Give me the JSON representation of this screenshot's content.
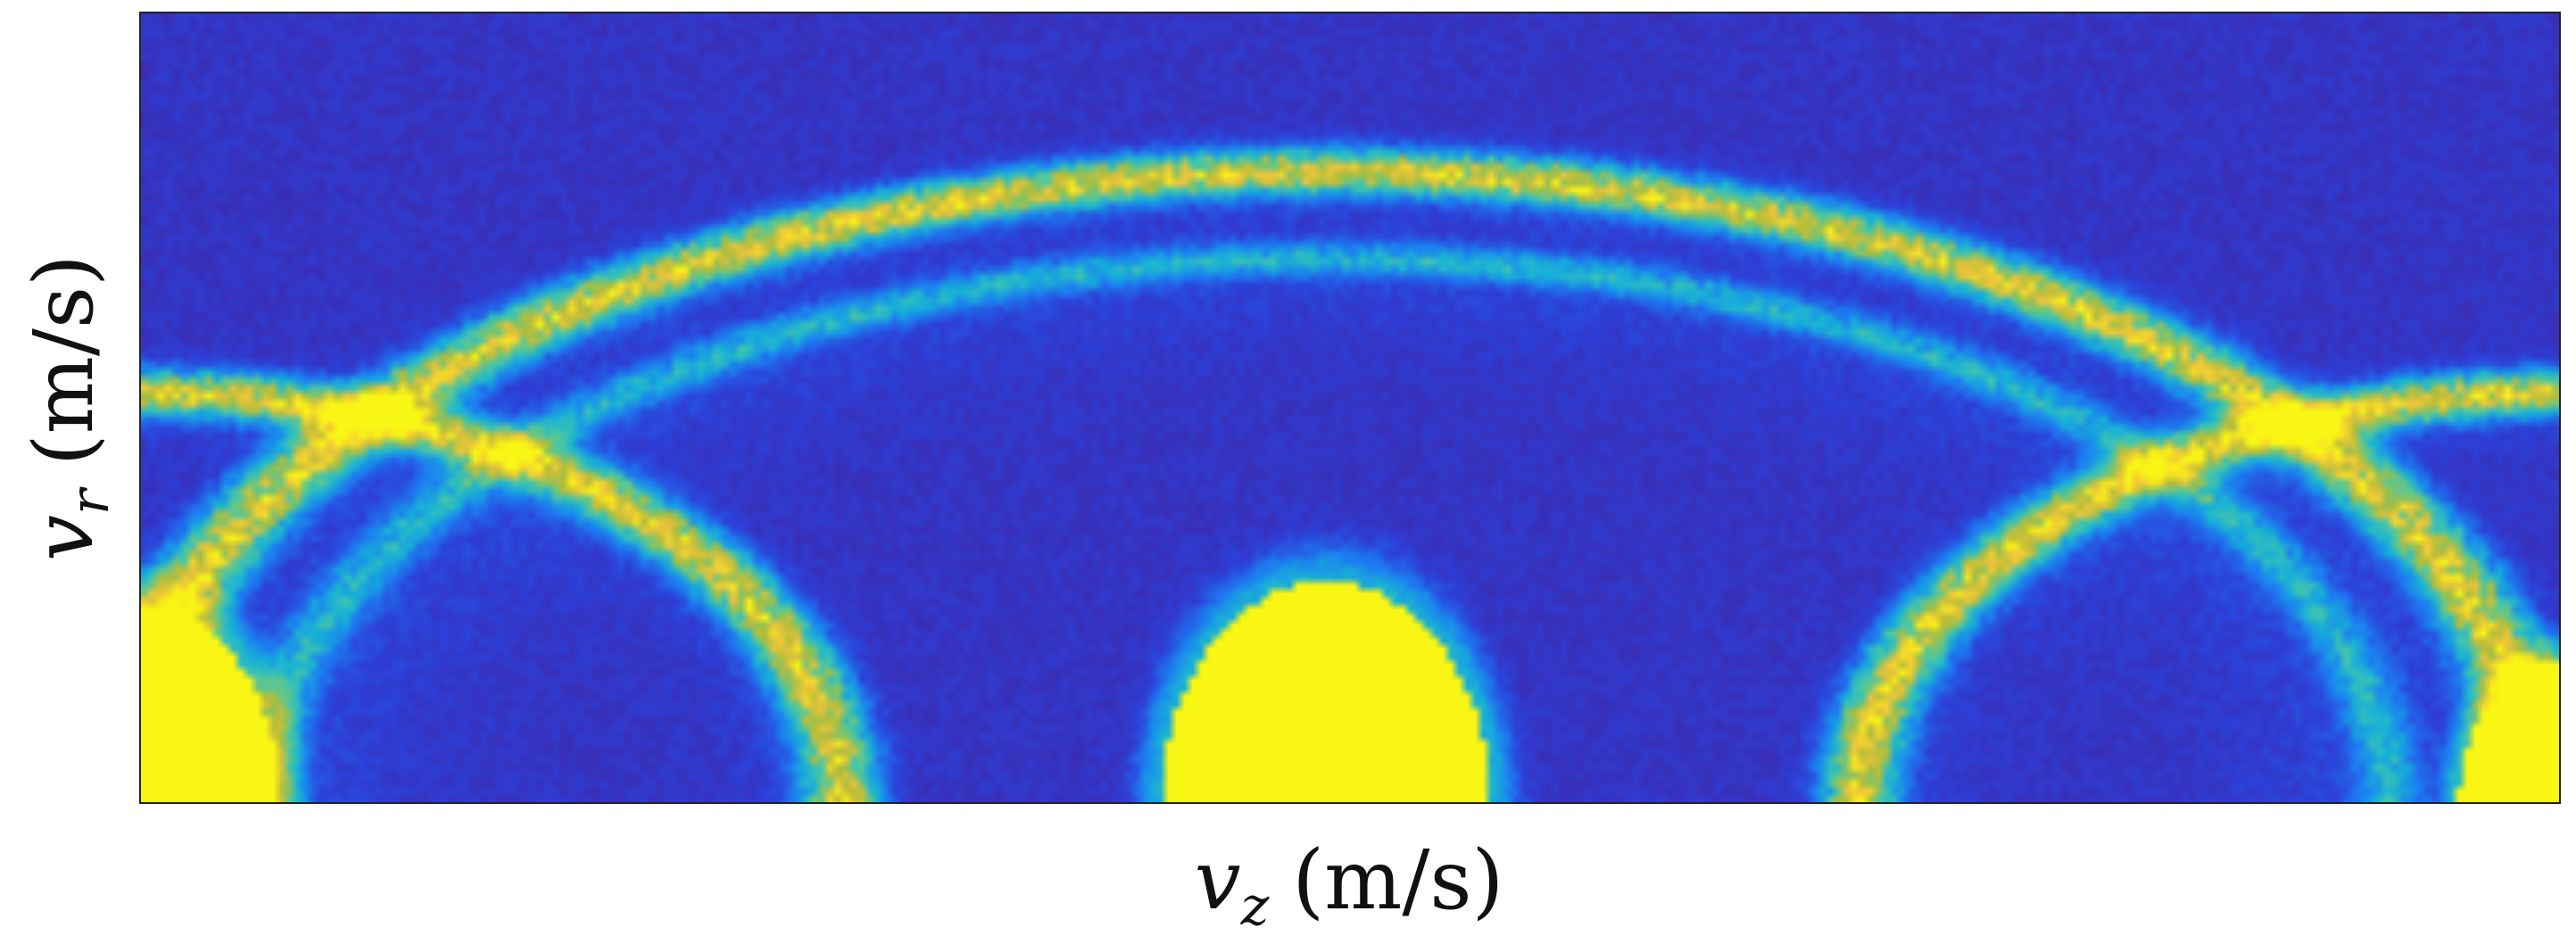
{
  "chart_data": {
    "type": "heatmap",
    "title": "",
    "xlabel": {
      "symbol": "v",
      "subscript": "z",
      "unit": "(m/s)"
    },
    "ylabel": {
      "symbol": "v",
      "subscript": "r",
      "unit": "(m/s)"
    },
    "xlim": [
      0,
      1
    ],
    "ylim": [
      0,
      1
    ],
    "xticks": [],
    "yticks": [],
    "grid": false,
    "legend": "none",
    "colormap": [
      "#3e26a8",
      "#2d40d8",
      "#1c7ef2",
      "#18b3d6",
      "#4cc8a2",
      "#b0bd3a",
      "#f0c53a",
      "#f9f514"
    ],
    "background_level": 0.08,
    "features": [
      {
        "kind": "ring",
        "center": [
          0.0,
          0.0
        ],
        "radius": [
          0.29,
          0.52
        ],
        "thickness": 0.04,
        "intensity": 0.72
      },
      {
        "kind": "ring",
        "center": [
          1.0,
          0.0
        ],
        "radius": [
          0.29,
          0.52
        ],
        "thickness": 0.04,
        "intensity": 0.72
      },
      {
        "kind": "ring",
        "center": [
          0.49,
          0.0
        ],
        "radius": [
          0.5,
          0.8
        ],
        "thickness": 0.04,
        "intensity": 0.72
      },
      {
        "kind": "ring",
        "center": [
          0.49,
          0.0
        ],
        "radius": [
          0.44,
          0.69
        ],
        "thickness": 0.03,
        "intensity": 0.32
      },
      {
        "kind": "blob",
        "center": [
          0.0,
          0.0
        ],
        "radius": [
          0.058,
          0.25
        ],
        "intensity": 1.0
      },
      {
        "kind": "blob",
        "center": [
          0.49,
          0.0
        ],
        "radius": [
          0.068,
          0.28
        ],
        "intensity": 1.0
      },
      {
        "kind": "blob",
        "center": [
          1.0,
          0.0
        ],
        "radius": [
          0.042,
          0.18
        ],
        "intensity": 1.0
      }
    ]
  }
}
